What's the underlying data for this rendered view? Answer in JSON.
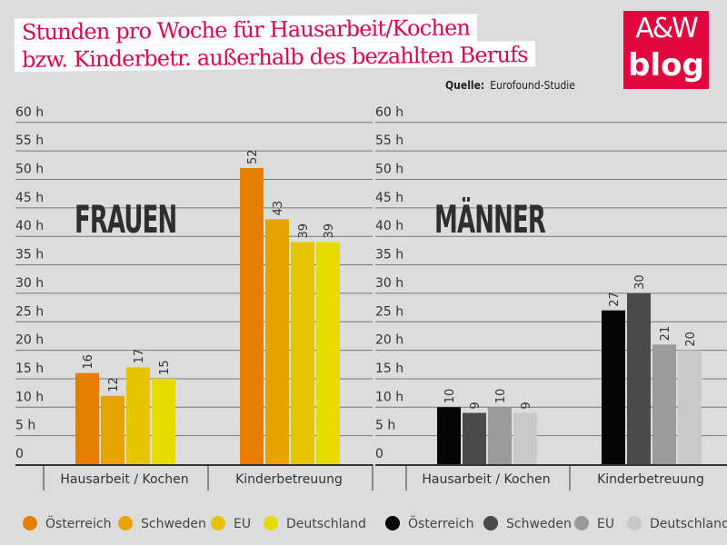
{
  "title": {
    "line1": "Stunden pro Woche für Hausarbeit/Kochen",
    "line2": "bzw. Kinderbetr. außerhalb des bezahlten Berufs"
  },
  "source": {
    "label": "Quelle:",
    "value": "Eurofound-Studie"
  },
  "logo": {
    "top": "A&W",
    "bottom": "blog"
  },
  "chart_data": [
    {
      "type": "bar",
      "title": "FRAUEN",
      "categories": [
        "Hausarbeit / Kochen",
        "Kinderbetreuung"
      ],
      "yticks": [
        "0",
        "5 h",
        "10 h",
        "15 h",
        "20 h",
        "25 h",
        "30 h",
        "35 h",
        "40 h",
        "45 h",
        "50 h",
        "55 h",
        "60 h"
      ],
      "ylim": [
        0,
        60
      ],
      "grid": true,
      "legend": "bottom",
      "series": [
        {
          "name": "Österreich",
          "color": "#e67e00",
          "values": [
            16,
            52
          ]
        },
        {
          "name": "Schweden",
          "color": "#e8a300",
          "values": [
            12,
            43
          ]
        },
        {
          "name": "EU",
          "color": "#e8c400",
          "values": [
            17,
            39
          ]
        },
        {
          "name": "Deutschland",
          "color": "#e6dc00",
          "values": [
            15,
            39
          ]
        }
      ]
    },
    {
      "type": "bar",
      "title": "MÄNNER",
      "categories": [
        "Hausarbeit / Kochen",
        "Kinderbetreuung"
      ],
      "yticks": [
        "0",
        "5 h",
        "10 h",
        "15 h",
        "20 h",
        "25 h",
        "30 h",
        "35 h",
        "40 h",
        "45 h",
        "50 h",
        "55 h",
        "60 h"
      ],
      "ylim": [
        0,
        60
      ],
      "grid": true,
      "legend": "bottom",
      "series": [
        {
          "name": "Österreich",
          "color": "#050505",
          "values": [
            10,
            27
          ]
        },
        {
          "name": "Schweden",
          "color": "#4a4a4a",
          "values": [
            9,
            30
          ]
        },
        {
          "name": "EU",
          "color": "#9b9b9b",
          "values": [
            10,
            21
          ]
        },
        {
          "name": "Deutschland",
          "color": "#c9c9c9",
          "values": [
            9,
            20
          ]
        }
      ]
    }
  ]
}
